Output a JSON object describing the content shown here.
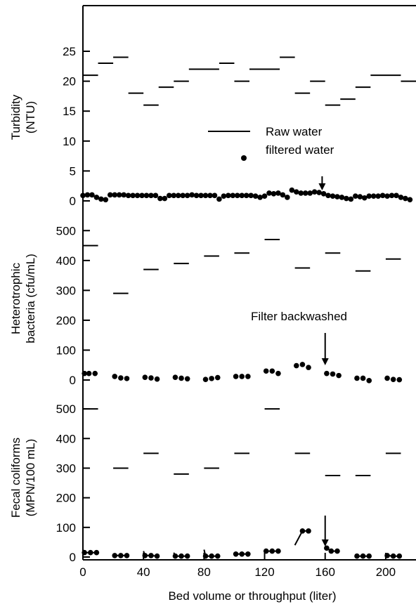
{
  "chart_data": [
    {
      "type": "scatter",
      "panel": "turbidity",
      "ylabel_lines": [
        "Turbidity",
        "(NTU)"
      ],
      "yticks": [
        0,
        5,
        10,
        15,
        20,
        25
      ],
      "ylim": [
        0,
        30
      ],
      "legend": {
        "raw_label": "Raw water",
        "filtered_label": "filtered water",
        "placement": "center-right"
      },
      "raw_segments": [
        {
          "x0": 0,
          "x1": 10,
          "y": 21
        },
        {
          "x0": 10,
          "x1": 20,
          "y": 23
        },
        {
          "x0": 20,
          "x1": 30,
          "y": 24
        },
        {
          "x0": 30,
          "x1": 40,
          "y": 18
        },
        {
          "x0": 40,
          "x1": 50,
          "y": 16
        },
        {
          "x0": 50,
          "x1": 60,
          "y": 19
        },
        {
          "x0": 60,
          "x1": 70,
          "y": 20
        },
        {
          "x0": 70,
          "x1": 90,
          "y": 22
        },
        {
          "x0": 90,
          "x1": 100,
          "y": 23
        },
        {
          "x0": 100,
          "x1": 110,
          "y": 20
        },
        {
          "x0": 110,
          "x1": 130,
          "y": 22
        },
        {
          "x0": 130,
          "x1": 140,
          "y": 24
        },
        {
          "x0": 140,
          "x1": 150,
          "y": 18
        },
        {
          "x0": 150,
          "x1": 160,
          "y": 20
        },
        {
          "x0": 160,
          "x1": 170,
          "y": 16
        },
        {
          "x0": 170,
          "x1": 180,
          "y": 17
        },
        {
          "x0": 180,
          "x1": 190,
          "y": 19
        },
        {
          "x0": 190,
          "x1": 210,
          "y": 21
        },
        {
          "x0": 210,
          "x1": 220,
          "y": 20
        }
      ],
      "filtered_points": [
        {
          "x": 0,
          "y": 0.9
        },
        {
          "x": 3,
          "y": 1.0
        },
        {
          "x": 6,
          "y": 1.0
        },
        {
          "x": 9,
          "y": 0.6
        },
        {
          "x": 12,
          "y": 0.3
        },
        {
          "x": 15,
          "y": 0.2
        },
        {
          "x": 18,
          "y": 1.0
        },
        {
          "x": 21,
          "y": 1.0
        },
        {
          "x": 24,
          "y": 1.0
        },
        {
          "x": 27,
          "y": 1.0
        },
        {
          "x": 30,
          "y": 0.9
        },
        {
          "x": 33,
          "y": 0.9
        },
        {
          "x": 36,
          "y": 0.9
        },
        {
          "x": 39,
          "y": 0.9
        },
        {
          "x": 42,
          "y": 0.9
        },
        {
          "x": 45,
          "y": 0.9
        },
        {
          "x": 48,
          "y": 0.9
        },
        {
          "x": 51,
          "y": 0.4
        },
        {
          "x": 54,
          "y": 0.4
        },
        {
          "x": 57,
          "y": 0.9
        },
        {
          "x": 60,
          "y": 0.9
        },
        {
          "x": 63,
          "y": 0.9
        },
        {
          "x": 66,
          "y": 0.9
        },
        {
          "x": 69,
          "y": 0.9
        },
        {
          "x": 72,
          "y": 1.0
        },
        {
          "x": 75,
          "y": 0.9
        },
        {
          "x": 78,
          "y": 0.9
        },
        {
          "x": 81,
          "y": 0.9
        },
        {
          "x": 84,
          "y": 0.9
        },
        {
          "x": 87,
          "y": 0.9
        },
        {
          "x": 90,
          "y": 0.3
        },
        {
          "x": 93,
          "y": 0.8
        },
        {
          "x": 96,
          "y": 0.9
        },
        {
          "x": 99,
          "y": 0.9
        },
        {
          "x": 102,
          "y": 0.9
        },
        {
          "x": 105,
          "y": 0.9
        },
        {
          "x": 108,
          "y": 0.9
        },
        {
          "x": 111,
          "y": 0.9
        },
        {
          "x": 114,
          "y": 0.8
        },
        {
          "x": 117,
          "y": 0.6
        },
        {
          "x": 120,
          "y": 0.8
        },
        {
          "x": 123,
          "y": 1.3
        },
        {
          "x": 126,
          "y": 1.2
        },
        {
          "x": 129,
          "y": 1.3
        },
        {
          "x": 132,
          "y": 1.0
        },
        {
          "x": 135,
          "y": 0.6
        },
        {
          "x": 138,
          "y": 1.8
        },
        {
          "x": 141,
          "y": 1.5
        },
        {
          "x": 144,
          "y": 1.3
        },
        {
          "x": 147,
          "y": 1.3
        },
        {
          "x": 150,
          "y": 1.3
        },
        {
          "x": 153,
          "y": 1.5
        },
        {
          "x": 156,
          "y": 1.4
        },
        {
          "x": 159,
          "y": 1.2
        },
        {
          "x": 162,
          "y": 0.9
        },
        {
          "x": 165,
          "y": 0.8
        },
        {
          "x": 168,
          "y": 0.7
        },
        {
          "x": 171,
          "y": 0.6
        },
        {
          "x": 174,
          "y": 0.4
        },
        {
          "x": 177,
          "y": 0.3
        },
        {
          "x": 180,
          "y": 0.8
        },
        {
          "x": 183,
          "y": 0.7
        },
        {
          "x": 186,
          "y": 0.5
        },
        {
          "x": 189,
          "y": 0.8
        },
        {
          "x": 192,
          "y": 0.8
        },
        {
          "x": 195,
          "y": 0.8
        },
        {
          "x": 198,
          "y": 0.9
        },
        {
          "x": 201,
          "y": 0.8
        },
        {
          "x": 204,
          "y": 0.9
        },
        {
          "x": 207,
          "y": 0.9
        },
        {
          "x": 210,
          "y": 0.6
        },
        {
          "x": 213,
          "y": 0.4
        },
        {
          "x": 216,
          "y": 0.2
        }
      ],
      "arrow_x": 158
    },
    {
      "type": "scatter",
      "panel": "heterotrophic-bacteria",
      "ylabel_lines": [
        "Heterotrophic",
        "bacteria (cfu/mL)"
      ],
      "yticks": [
        0,
        100,
        200,
        300,
        400,
        500
      ],
      "ylim": [
        0,
        550
      ],
      "annotation": "Filter backwashed",
      "raw_segments": [
        {
          "x0": 0,
          "x1": 10,
          "y": 450
        },
        {
          "x0": 20,
          "x1": 30,
          "y": 290
        },
        {
          "x0": 40,
          "x1": 50,
          "y": 370
        },
        {
          "x0": 60,
          "x1": 70,
          "y": 390
        },
        {
          "x0": 80,
          "x1": 90,
          "y": 415
        },
        {
          "x0": 100,
          "x1": 110,
          "y": 425
        },
        {
          "x0": 120,
          "x1": 130,
          "y": 470
        },
        {
          "x0": 140,
          "x1": 150,
          "y": 375
        },
        {
          "x0": 160,
          "x1": 170,
          "y": 425
        },
        {
          "x0": 180,
          "x1": 190,
          "y": 365
        },
        {
          "x0": 200,
          "x1": 210,
          "y": 405
        }
      ],
      "filtered_points": [
        {
          "x": 1,
          "y": 22
        },
        {
          "x": 4,
          "y": 22
        },
        {
          "x": 8,
          "y": 22
        },
        {
          "x": 21,
          "y": 12
        },
        {
          "x": 25,
          "y": 7
        },
        {
          "x": 29,
          "y": 5
        },
        {
          "x": 41,
          "y": 9
        },
        {
          "x": 45,
          "y": 7
        },
        {
          "x": 49,
          "y": 3
        },
        {
          "x": 61,
          "y": 9
        },
        {
          "x": 65,
          "y": 6
        },
        {
          "x": 69,
          "y": 4
        },
        {
          "x": 81,
          "y": 2
        },
        {
          "x": 85,
          "y": 5
        },
        {
          "x": 89,
          "y": 8
        },
        {
          "x": 101,
          "y": 12
        },
        {
          "x": 105,
          "y": 12
        },
        {
          "x": 109,
          "y": 12
        },
        {
          "x": 121,
          "y": 30
        },
        {
          "x": 125,
          "y": 30
        },
        {
          "x": 129,
          "y": 22
        },
        {
          "x": 141,
          "y": 48
        },
        {
          "x": 145,
          "y": 52
        },
        {
          "x": 149,
          "y": 42
        },
        {
          "x": 161,
          "y": 22
        },
        {
          "x": 165,
          "y": 20
        },
        {
          "x": 169,
          "y": 15
        },
        {
          "x": 181,
          "y": 6
        },
        {
          "x": 185,
          "y": 6
        },
        {
          "x": 189,
          "y": -2
        },
        {
          "x": 201,
          "y": 6
        },
        {
          "x": 205,
          "y": 2
        },
        {
          "x": 209,
          "y": 1
        }
      ],
      "arrow_x": 160
    },
    {
      "type": "scatter",
      "panel": "fecal-coliforms",
      "ylabel_lines": [
        "Fecal coliforms",
        "(MPN/100 mL)"
      ],
      "yticks": [
        0,
        100,
        200,
        300,
        400,
        500
      ],
      "ylim": [
        0,
        550
      ],
      "xticks": [
        0,
        40,
        80,
        120,
        160,
        200
      ],
      "xlim": [
        0,
        220
      ],
      "xlabel": "Bed volume or throughput (liter)",
      "raw_segments": [
        {
          "x0": 0,
          "x1": 10,
          "y": 500
        },
        {
          "x0": 20,
          "x1": 30,
          "y": 300
        },
        {
          "x0": 40,
          "x1": 50,
          "y": 350
        },
        {
          "x0": 60,
          "x1": 70,
          "y": 280
        },
        {
          "x0": 80,
          "x1": 90,
          "y": 300
        },
        {
          "x0": 100,
          "x1": 110,
          "y": 350
        },
        {
          "x0": 120,
          "x1": 130,
          "y": 500
        },
        {
          "x0": 140,
          "x1": 150,
          "y": 350
        },
        {
          "x0": 160,
          "x1": 170,
          "y": 275
        },
        {
          "x0": 180,
          "x1": 190,
          "y": 275
        },
        {
          "x0": 200,
          "x1": 210,
          "y": 350
        }
      ],
      "filtered_groups": [
        [
          {
            "x": 0,
            "y": 25
          },
          {
            "x": 1,
            "y": 15
          },
          {
            "x": 5,
            "y": 15
          },
          {
            "x": 9,
            "y": 15
          }
        ],
        [
          {
            "x": 20,
            "y": 10
          },
          {
            "x": 21,
            "y": 5
          },
          {
            "x": 25,
            "y": 5
          },
          {
            "x": 29,
            "y": 5
          }
        ],
        [
          {
            "x": 40,
            "y": 20
          },
          {
            "x": 41,
            "y": 5
          },
          {
            "x": 45,
            "y": 5
          },
          {
            "x": 49,
            "y": 3
          }
        ],
        [
          {
            "x": 60,
            "y": 15
          },
          {
            "x": 61,
            "y": 3
          },
          {
            "x": 65,
            "y": 3
          },
          {
            "x": 69,
            "y": 3
          }
        ],
        [
          {
            "x": 80,
            "y": 25
          },
          {
            "x": 81,
            "y": 3
          },
          {
            "x": 85,
            "y": 3
          },
          {
            "x": 89,
            "y": 3
          }
        ],
        [
          {
            "x": 100,
            "y": 10
          },
          {
            "x": 101,
            "y": 10
          },
          {
            "x": 105,
            "y": 10
          },
          {
            "x": 109,
            "y": 10
          }
        ],
        [
          {
            "x": 120,
            "y": 25
          },
          {
            "x": 121,
            "y": 20
          },
          {
            "x": 125,
            "y": 20
          },
          {
            "x": 129,
            "y": 20
          }
        ],
        [
          {
            "x": 140,
            "y": 40
          },
          {
            "x": 145,
            "y": 88
          },
          {
            "x": 149,
            "y": 88
          }
        ],
        [
          {
            "x": 160,
            "y": 30
          },
          {
            "x": 161,
            "y": 30
          },
          {
            "x": 164,
            "y": 20
          },
          {
            "x": 168,
            "y": 20
          }
        ],
        [
          {
            "x": 180,
            "y": 10
          },
          {
            "x": 181,
            "y": 3
          },
          {
            "x": 185,
            "y": 3
          },
          {
            "x": 189,
            "y": 3
          }
        ],
        [
          {
            "x": 200,
            "y": 10
          },
          {
            "x": 201,
            "y": 5
          },
          {
            "x": 205,
            "y": 3
          },
          {
            "x": 209,
            "y": 3
          }
        ]
      ],
      "arrow_x": 160
    }
  ]
}
